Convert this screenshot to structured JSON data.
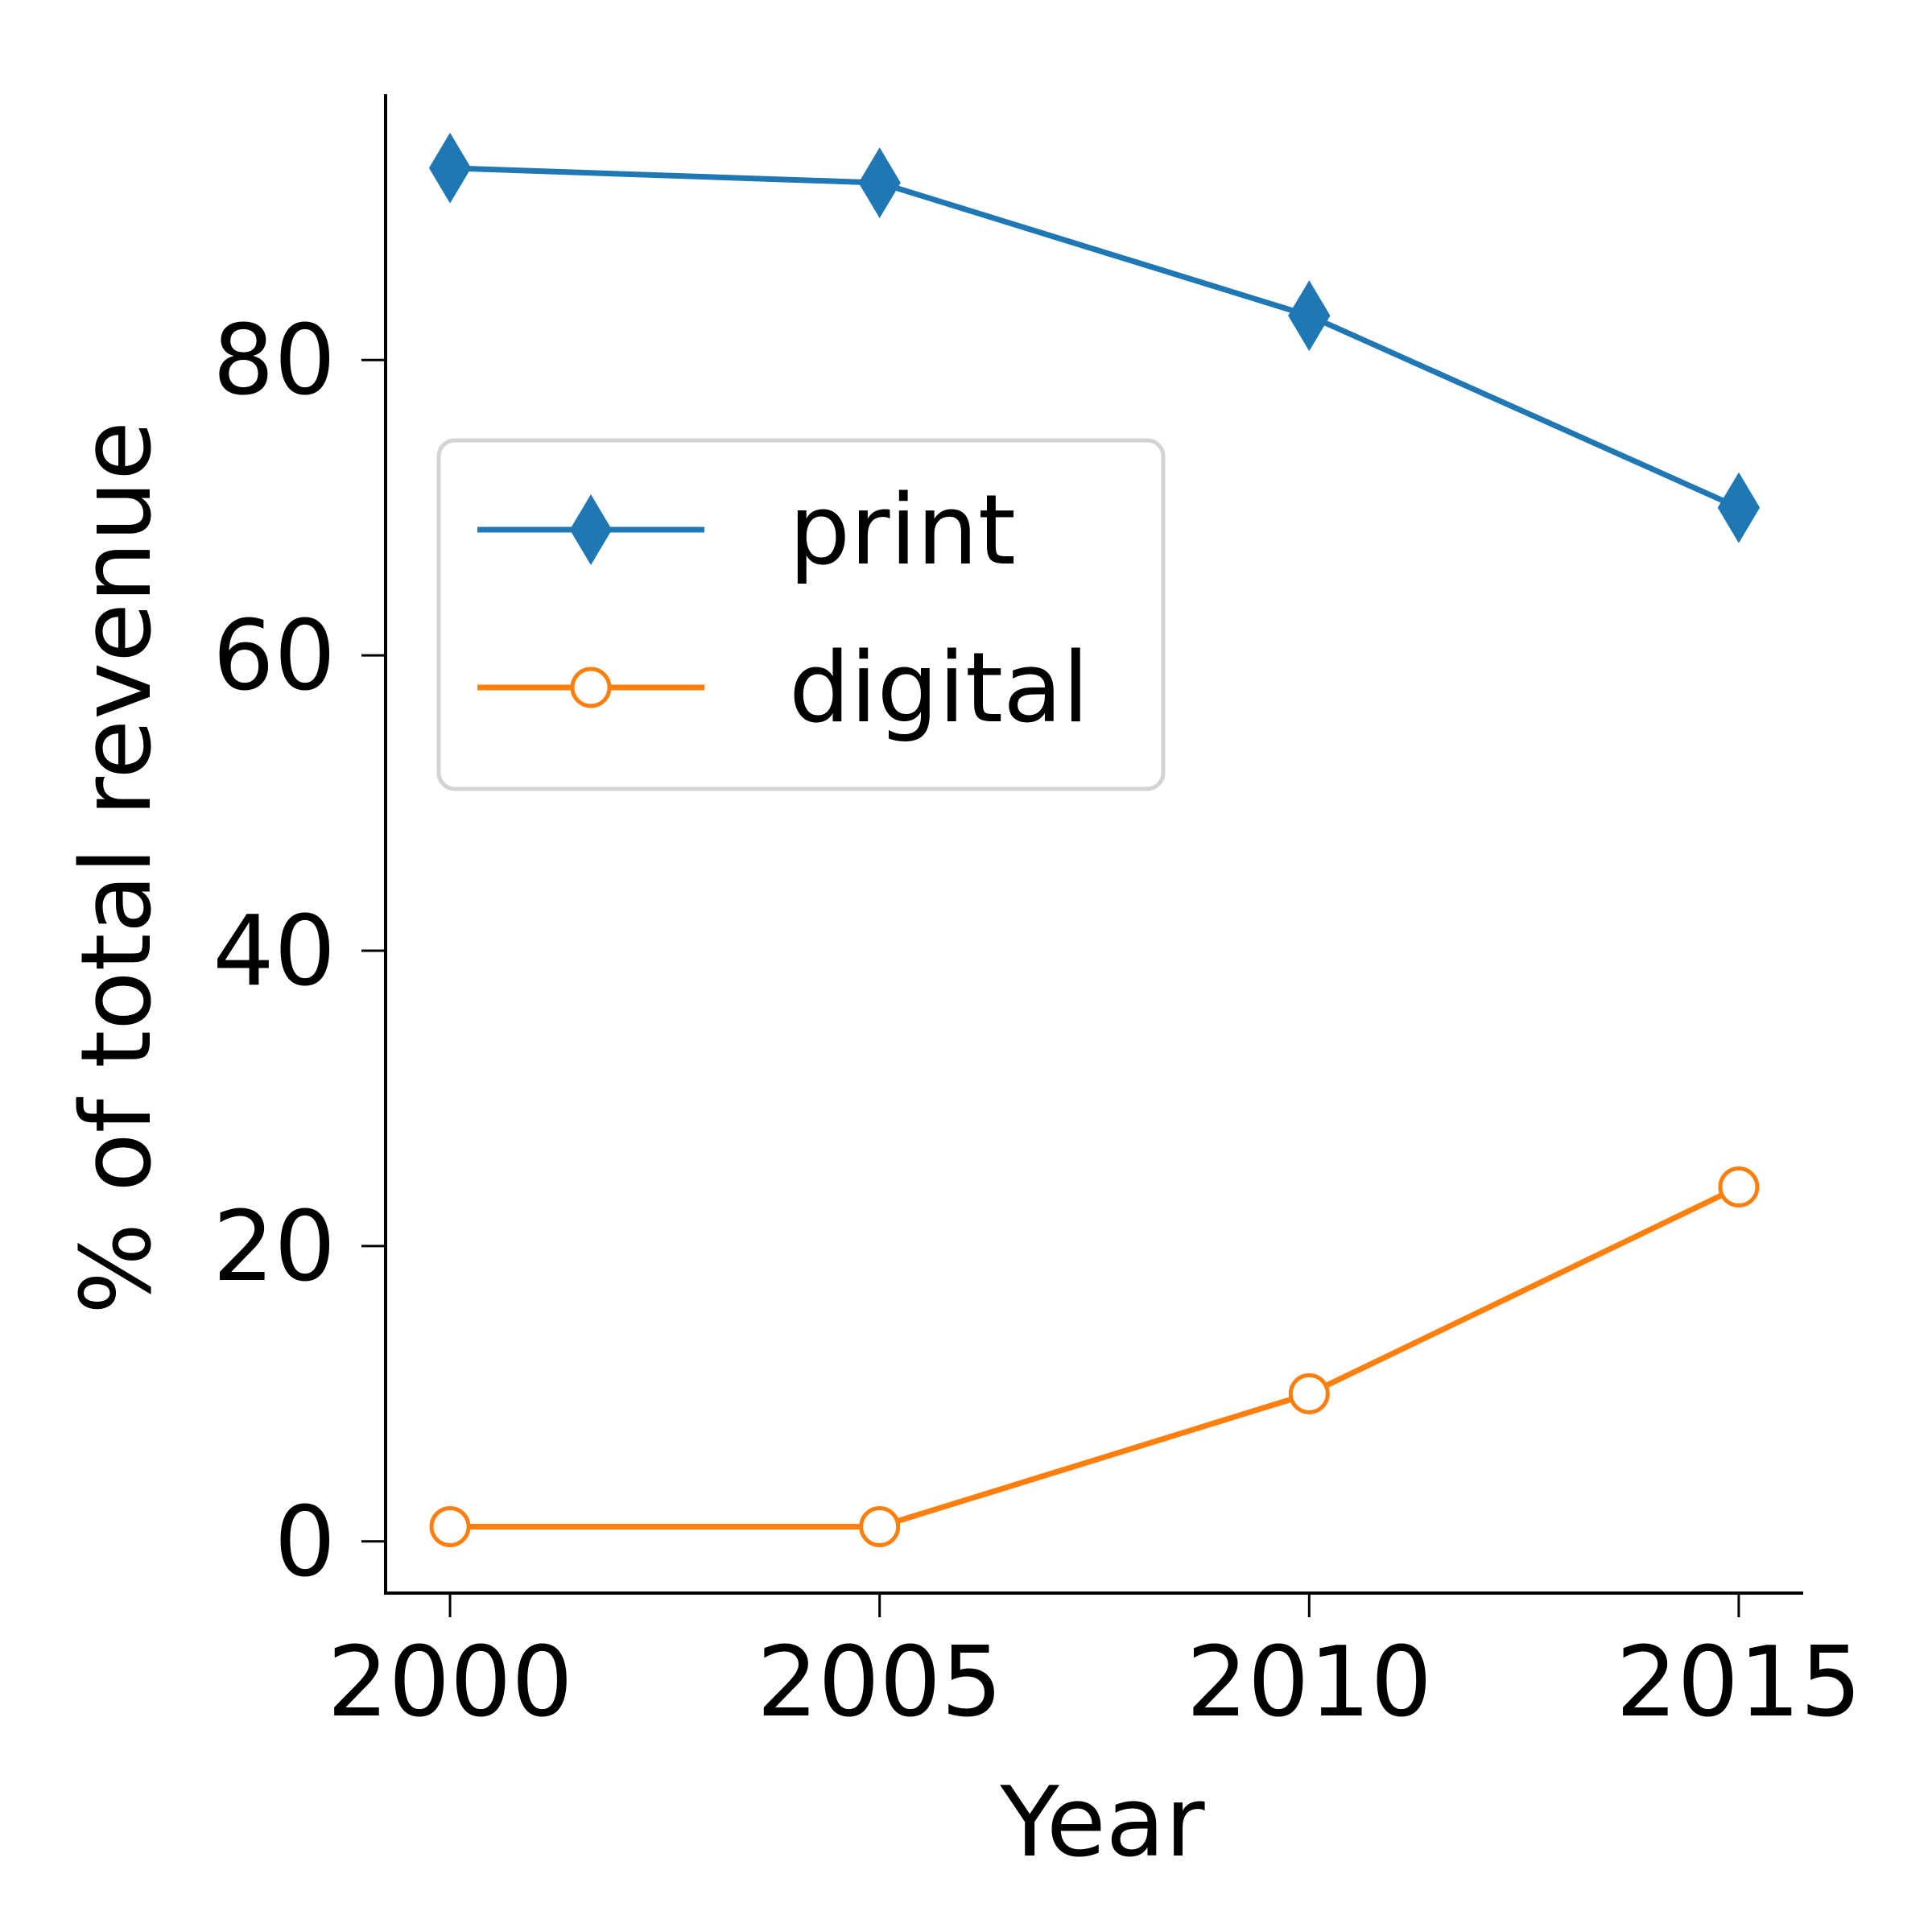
{
  "chart_data": {
    "type": "line",
    "title": "",
    "xlabel": "Year",
    "ylabel": "% of total revenue",
    "x": [
      2000,
      2005,
      2010,
      2015
    ],
    "xticks": [
      "2000",
      "2005",
      "2010",
      "2015"
    ],
    "yticks": [
      "0",
      "20",
      "40",
      "60",
      "80"
    ],
    "xlim": [
      1999.25,
      2015.75
    ],
    "ylim": [
      -3.5,
      98
    ],
    "grid": false,
    "legend_position": "upper-left",
    "series": [
      {
        "name": "print",
        "values": [
          93,
          92,
          83,
          70
        ],
        "color": "#1f77b4",
        "marker": "thin-diamond-filled"
      },
      {
        "name": "digital",
        "values": [
          1,
          1,
          10,
          24
        ],
        "color": "#ff7f0e",
        "marker": "circle-hollow"
      }
    ]
  }
}
